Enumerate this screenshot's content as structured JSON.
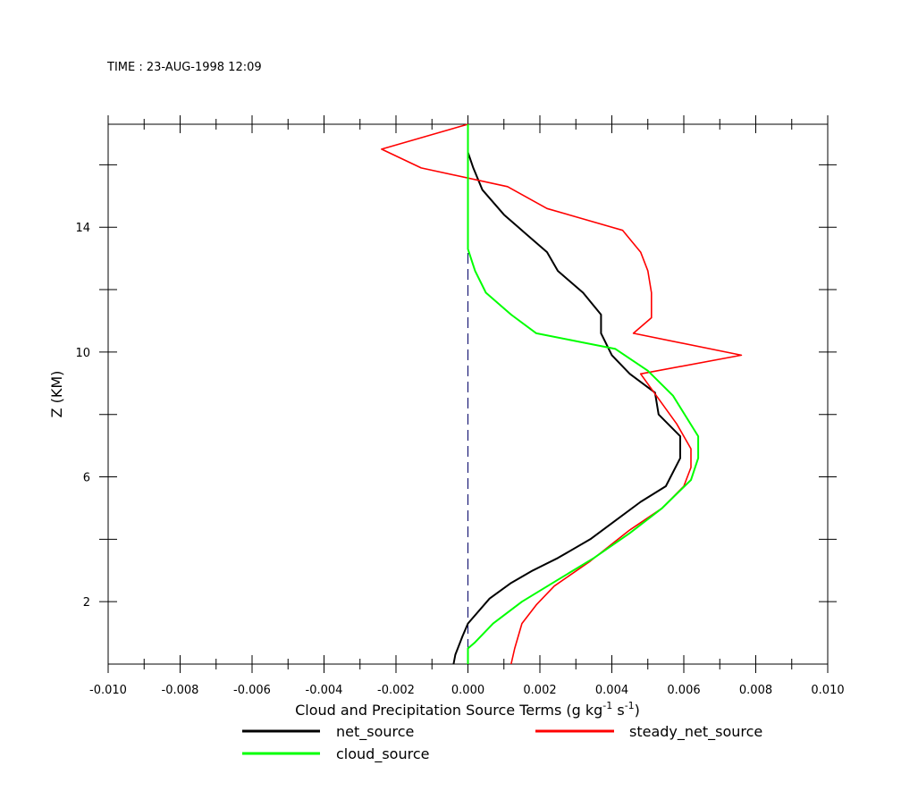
{
  "header": {
    "time_label": "TIME : 23-AUG-1998 12:09"
  },
  "chart_data": {
    "type": "line",
    "xlabel": "Cloud and Precipitation Source Terms (g kg",
    "xlabel_sup1": "-1",
    "xlabel_mid": " s",
    "xlabel_sup2": "-1",
    "xlabel_end": ")",
    "ylabel": "Z (KM)",
    "xlim": [
      -0.01,
      0.01
    ],
    "ylim": [
      0.0,
      17.3
    ],
    "x_ticks": [
      -0.01,
      -0.008,
      -0.006,
      -0.004,
      -0.002,
      0.0,
      0.002,
      0.004,
      0.006,
      0.008,
      0.01
    ],
    "x_tick_labels": [
      "-0.010",
      "-0.008",
      "-0.006",
      "-0.004",
      "-0.002",
      "0.000",
      "0.002",
      "0.004",
      "0.006",
      "0.008",
      "0.010"
    ],
    "y_ticks": [
      2,
      6,
      10,
      14
    ],
    "y_tick_labels": [
      "2",
      "6",
      "10",
      "14"
    ],
    "zero_line": {
      "x": 0.0,
      "style": "dashed",
      "color": "#000066"
    },
    "series": [
      {
        "name": "net_source",
        "color": "#000000",
        "points": [
          [
            -0.0004,
            0.0
          ],
          [
            -0.00035,
            0.3
          ],
          [
            -0.00015,
            0.9
          ],
          [
            0.0,
            1.3
          ],
          [
            0.0006,
            2.1
          ],
          [
            0.0012,
            2.6
          ],
          [
            0.0018,
            3.0
          ],
          [
            0.0025,
            3.4
          ],
          [
            0.0034,
            4.0
          ],
          [
            0.0041,
            4.6
          ],
          [
            0.0048,
            5.2
          ],
          [
            0.0055,
            5.7
          ],
          [
            0.0059,
            6.6
          ],
          [
            0.0059,
            7.3
          ],
          [
            0.0053,
            8.0
          ],
          [
            0.0052,
            8.7
          ],
          [
            0.0045,
            9.3
          ],
          [
            0.004,
            9.9
          ],
          [
            0.0037,
            10.6
          ],
          [
            0.0037,
            11.2
          ],
          [
            0.0032,
            11.9
          ],
          [
            0.0025,
            12.6
          ],
          [
            0.0022,
            13.2
          ],
          [
            0.0016,
            13.8
          ],
          [
            0.001,
            14.4
          ],
          [
            0.0004,
            15.2
          ],
          [
            0.00015,
            15.9
          ],
          [
            0.0,
            16.4
          ],
          [
            0.0,
            17.3
          ]
        ]
      },
      {
        "name": "steady_net_source",
        "color": "#ff0000",
        "points": [
          [
            0.0012,
            0.0
          ],
          [
            0.0013,
            0.5
          ],
          [
            0.0015,
            1.3
          ],
          [
            0.0019,
            1.9
          ],
          [
            0.0024,
            2.5
          ],
          [
            0.0034,
            3.3
          ],
          [
            0.0045,
            4.3
          ],
          [
            0.0054,
            5.0
          ],
          [
            0.006,
            5.7
          ],
          [
            0.0062,
            6.3
          ],
          [
            0.0062,
            6.9
          ],
          [
            0.0058,
            7.7
          ],
          [
            0.0053,
            8.5
          ],
          [
            0.0048,
            9.3
          ],
          [
            0.0076,
            9.9
          ],
          [
            0.0046,
            10.6
          ],
          [
            0.0051,
            11.1
          ],
          [
            0.0051,
            11.9
          ],
          [
            0.005,
            12.6
          ],
          [
            0.0048,
            13.2
          ],
          [
            0.0043,
            13.9
          ],
          [
            0.0022,
            14.6
          ],
          [
            0.0011,
            15.3
          ],
          [
            -0.0013,
            15.9
          ],
          [
            -0.0024,
            16.5
          ],
          [
            0.0,
            17.3
          ]
        ]
      },
      {
        "name": "cloud_source",
        "color": "#00ff00",
        "points": [
          [
            0.0,
            0.0
          ],
          [
            0.0,
            0.5
          ],
          [
            0.0002,
            0.7
          ],
          [
            0.0007,
            1.3
          ],
          [
            0.0015,
            2.0
          ],
          [
            0.0025,
            2.7
          ],
          [
            0.0035,
            3.4
          ],
          [
            0.0045,
            4.2
          ],
          [
            0.0054,
            5.0
          ],
          [
            0.0062,
            5.9
          ],
          [
            0.0064,
            6.6
          ],
          [
            0.0064,
            7.3
          ],
          [
            0.0057,
            8.6
          ],
          [
            0.005,
            9.4
          ],
          [
            0.0041,
            10.1
          ],
          [
            0.0019,
            10.6
          ],
          [
            0.0012,
            11.2
          ],
          [
            0.0005,
            11.9
          ],
          [
            0.0002,
            12.6
          ],
          [
            0.0,
            13.3
          ],
          [
            0.0,
            14.0
          ],
          [
            0.0,
            15.3
          ],
          [
            0.0,
            16.4
          ],
          [
            0.0,
            17.3
          ]
        ]
      }
    ],
    "legend": {
      "placement": "bottom",
      "entries": [
        {
          "label": "net_source",
          "color": "#000000"
        },
        {
          "label": "steady_net_source",
          "color": "#ff0000"
        },
        {
          "label": "cloud_source",
          "color": "#00ff00"
        }
      ]
    }
  }
}
